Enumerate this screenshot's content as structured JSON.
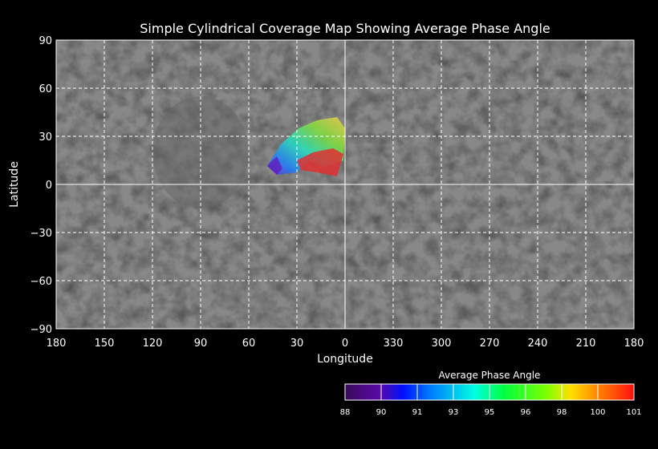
{
  "title": "Simple Cylindrical Coverage Map Showing Average Phase Angle",
  "xlabel": "Longitude",
  "ylabel": "Latitude",
  "chart_data": {
    "type": "heatmap",
    "projection": "simple cylindrical",
    "x_ticks": [
      "180",
      "150",
      "120",
      "90",
      "60",
      "30",
      "0",
      "330",
      "300",
      "270",
      "240",
      "210",
      "180"
    ],
    "y_ticks": [
      "90",
      "60",
      "30",
      "0",
      "−30",
      "−60",
      "−90"
    ],
    "xlim": [
      180,
      -180
    ],
    "ylim": [
      -90,
      90
    ],
    "grid": true,
    "coverage_region": {
      "lon_range": [
        0,
        48
      ],
      "lat_range": [
        5,
        42
      ],
      "value_range": [
        88,
        101
      ]
    },
    "colorbar": {
      "title": "Average Phase Angle",
      "ticks": [
        "88",
        "90",
        "91",
        "93",
        "95",
        "96",
        "98",
        "100",
        "101"
      ],
      "colors": [
        "#3a0a5a",
        "#5a0aa8",
        "#0010ff",
        "#0080ff",
        "#00ffe0",
        "#00ff40",
        "#80ff00",
        "#ffe000",
        "#ff8000",
        "#ff1010"
      ],
      "placement": "bottom-right"
    }
  }
}
